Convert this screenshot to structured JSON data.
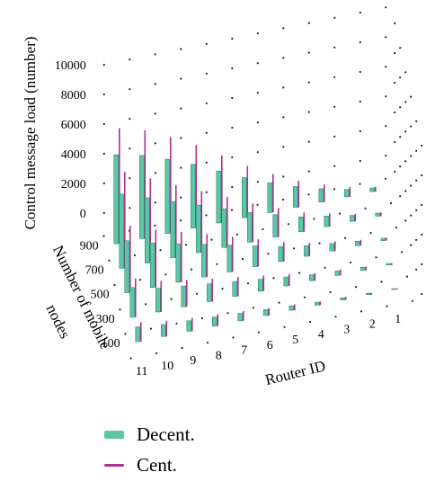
{
  "chart_data": {
    "type": "bar3d",
    "title": "",
    "zlabel": "Control message load (number)",
    "ylabel_line1": "Number of mobile",
    "ylabel_line2": "nodes",
    "xlabel": "Router ID",
    "z_ticks": [
      "0",
      "2000",
      "4000",
      "6000",
      "8000",
      "10000"
    ],
    "zlim": [
      0,
      10000
    ],
    "y_ticks": [
      "100",
      "300",
      "500",
      "700",
      "900"
    ],
    "x_ticks": [
      "11",
      "10",
      "9",
      "8",
      "7",
      "6",
      "5",
      "4",
      "3",
      "2",
      "1"
    ],
    "legend_placement": "bottom",
    "grid": true,
    "series": [
      {
        "name": "Decent.",
        "color": "#5cc7a6",
        "rows": [
          {
            "nodes": 100,
            "values": [
              1000,
              800,
              700,
              600,
              500,
              400,
              300,
              200,
              150,
              100,
              50
            ]
          },
          {
            "nodes": 300,
            "values": [
              2000,
              1600,
              1400,
              1200,
              1000,
              800,
              600,
              400,
              300,
              200,
              100
            ]
          },
          {
            "nodes": 500,
            "values": [
              3500,
              3000,
              2600,
              2200,
              1800,
              1400,
              1000,
              700,
              500,
              300,
              150
            ]
          },
          {
            "nodes": 700,
            "values": [
              5000,
              4400,
              3800,
              3200,
              2600,
              2000,
              1500,
              1000,
              700,
              400,
              200
            ]
          },
          {
            "nodes": 900,
            "values": [
              6000,
              5600,
              5000,
              4300,
              3500,
              2700,
              2000,
              1400,
              900,
              500,
              250
            ]
          }
        ]
      },
      {
        "name": "Cent.",
        "color": "#b0308f",
        "rows": [
          {
            "nodes": 100,
            "values": [
              1300,
              1050,
              900,
              800,
              650,
              500,
              400,
              250,
              200,
              120,
              70
            ]
          },
          {
            "nodes": 300,
            "values": [
              2600,
              2100,
              1800,
              1550,
              1300,
              1050,
              800,
              500,
              400,
              250,
              130
            ]
          },
          {
            "nodes": 500,
            "values": [
              4500,
              3900,
              3400,
              2900,
              2350,
              1850,
              1300,
              900,
              650,
              400,
              200
            ]
          },
          {
            "nodes": 700,
            "values": [
              6500,
              5700,
              4900,
              4150,
              3400,
              2600,
              1950,
              1300,
              900,
              500,
              260
            ]
          },
          {
            "nodes": 900,
            "values": [
              7800,
              7300,
              6500,
              5600,
              4550,
              3500,
              2600,
              1800,
              1200,
              650,
              320
            ]
          }
        ]
      }
    ]
  }
}
